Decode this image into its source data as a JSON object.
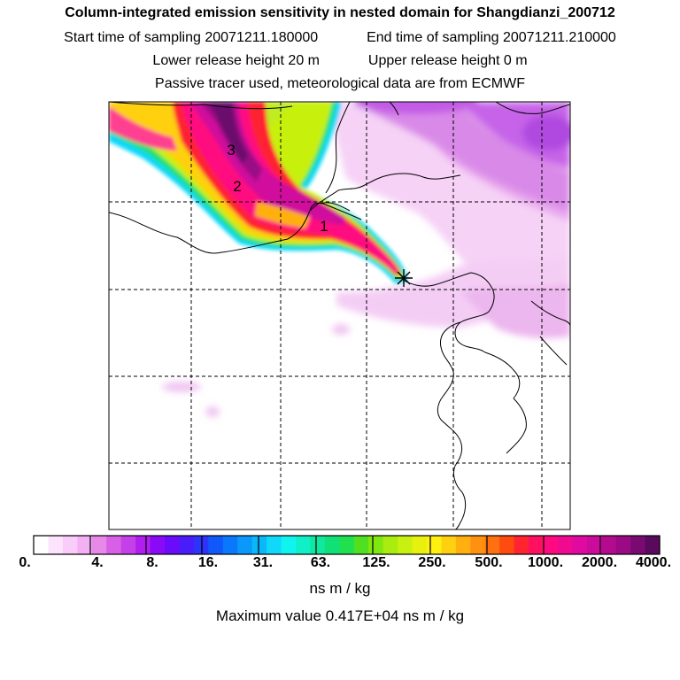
{
  "header": {
    "title": "Column-integrated emission sensitivity in nested domain for Shangdianzi_200712",
    "start_label": "Start time of sampling",
    "start_value": "20071211.180000",
    "end_label": "End time of sampling",
    "end_value": "20071211.210000",
    "lower_label": "Lower release height",
    "lower_value": "20 m",
    "upper_label": "Upper release height",
    "upper_value": "0 m",
    "tracer_note": "Passive tracer used, meteorological data are from ECMWF"
  },
  "map": {
    "contour_labels": [
      "3",
      "2",
      "1"
    ],
    "release_marker": "star-marker"
  },
  "colorbar": {
    "tick_labels": [
      "0.",
      "4.",
      "8.",
      "16.",
      "31.",
      "63.",
      "125.",
      "250.",
      "500.",
      "1000.",
      "2000.",
      "4000."
    ],
    "colors": [
      "#ffffff",
      "#fde4fd",
      "#f9ccf9",
      "#f3b0f3",
      "#e889ea",
      "#d860e6",
      "#c640ea",
      "#b01ef0",
      "#8a0af8",
      "#6a0cfa",
      "#4a1cfa",
      "#2c34fa",
      "#1058fa",
      "#0a78fa",
      "#0a98fa",
      "#0ab8fa",
      "#10d8f8",
      "#10f4f0",
      "#10f0c8",
      "#10e8a0",
      "#10e078",
      "#20e050",
      "#50e020",
      "#80e810",
      "#a8ec10",
      "#c8f010",
      "#e8f010",
      "#fff010",
      "#ffd010",
      "#ffb010",
      "#ff9010",
      "#ff7010",
      "#ff4a10",
      "#ff2430",
      "#ff1060",
      "#ff0a80",
      "#f00a90",
      "#e00aa0",
      "#cc0a9c",
      "#b40a90",
      "#9a0a84",
      "#7a0a72",
      "#5a0a5c"
    ],
    "units": "ns m / kg",
    "max_label": "Maximum value",
    "max_value": "0.417E+04 ns m / kg"
  }
}
